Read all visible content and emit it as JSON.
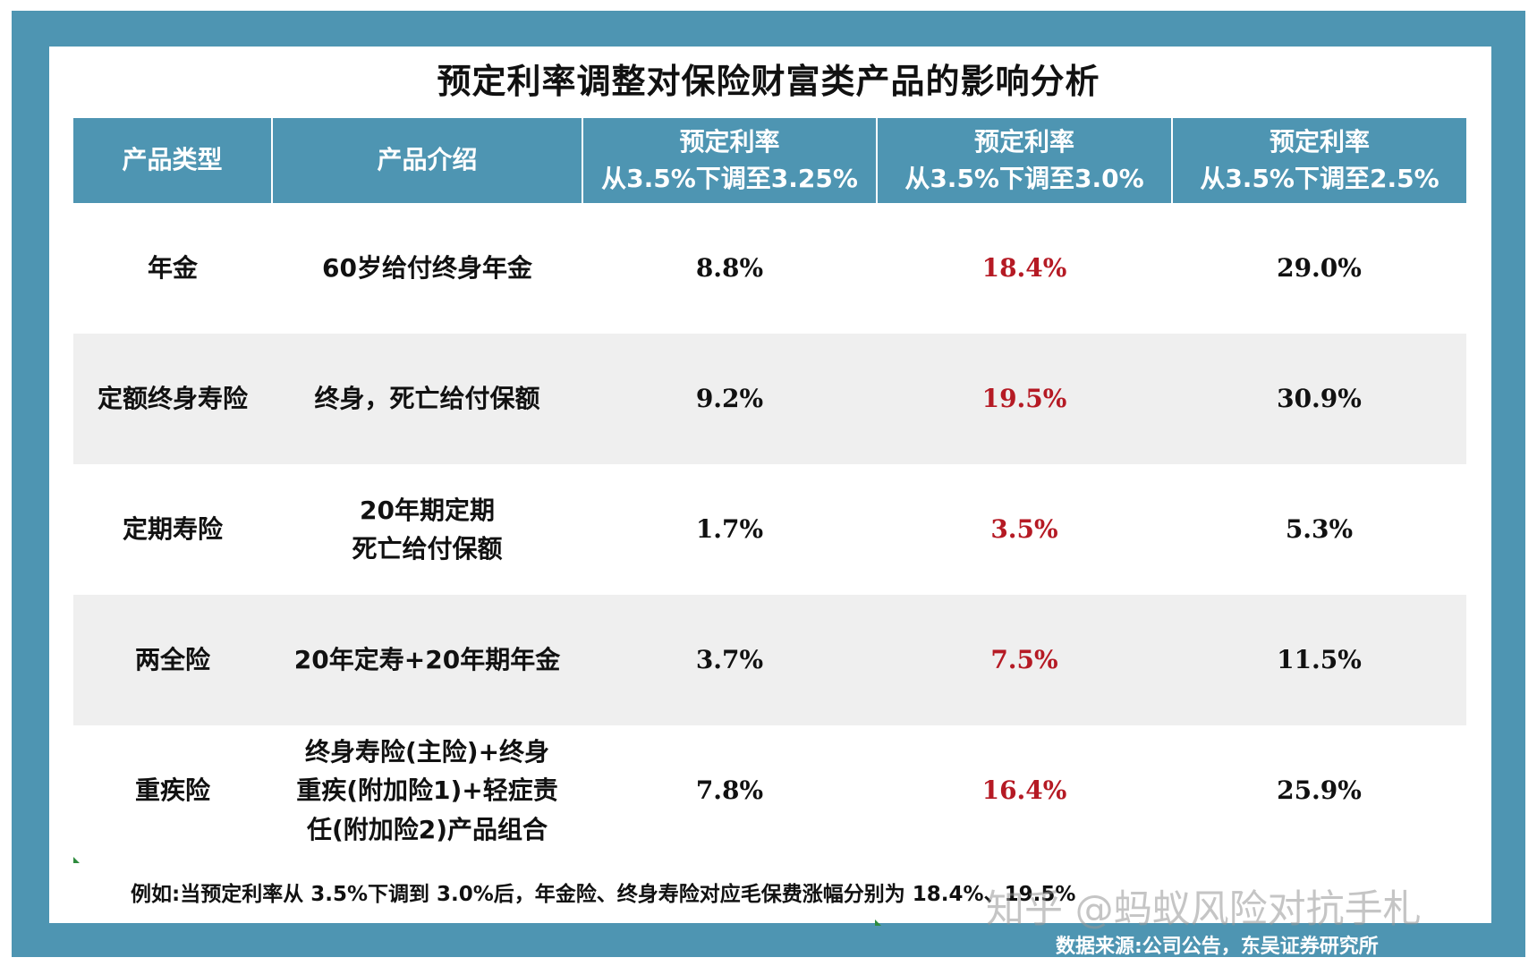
{
  "title": "预定利率调整对保险财富类产品的影响分析",
  "table": {
    "headers": [
      {
        "line1": "产品类型",
        "line2": ""
      },
      {
        "line1": "产品介绍",
        "line2": ""
      },
      {
        "line1": "预定利率",
        "line2": "从3.5%下调至3.25%"
      },
      {
        "line1": "预定利率",
        "line2": "从3.5%下调至3.0%"
      },
      {
        "line1": "预定利率",
        "line2": "从3.5%下调至2.5%"
      }
    ],
    "rows": [
      {
        "category": "年金",
        "intro": [
          "60岁给付终身年金"
        ],
        "r325": "8.8%",
        "r30": "18.4%",
        "r25": "29.0%"
      },
      {
        "category": "定额终身寿险",
        "intro": [
          "终身，死亡给付保额"
        ],
        "r325": "9.2%",
        "r30": "19.5%",
        "r25": "30.9%"
      },
      {
        "category": "定期寿险",
        "intro": [
          "20年期定期",
          "死亡给付保额"
        ],
        "r325": "1.7%",
        "r30": "3.5%",
        "r25": "5.3%"
      },
      {
        "category": "两全险",
        "intro": [
          "20年定寿+20年期年金"
        ],
        "r325": "3.7%",
        "r30": "7.5%",
        "r25": "11.5%"
      },
      {
        "category": "重疾险",
        "intro": [
          "终身寿险(主险)+终身",
          "重疾(附加险1)+轻症责",
          "任(附加险2)产品组合"
        ],
        "r325": "7.8%",
        "r30": "16.4%",
        "r25": "25.9%"
      }
    ]
  },
  "note": "例如:当预定利率从 3.5%下调到 3.0%后，年金险、终身寿险对应毛保费涨幅分别为 18.4%、19.5%",
  "watermark": "知乎 @蚂蚁风险对抗手札",
  "source": "数据来源:公司公告，东吴证券研究所",
  "colors": {
    "frame": "#4e95b2",
    "header_bg": "#4e95b2",
    "header_text": "#ffffff",
    "highlight": "#b51a24",
    "row_shade": "#efefef"
  }
}
